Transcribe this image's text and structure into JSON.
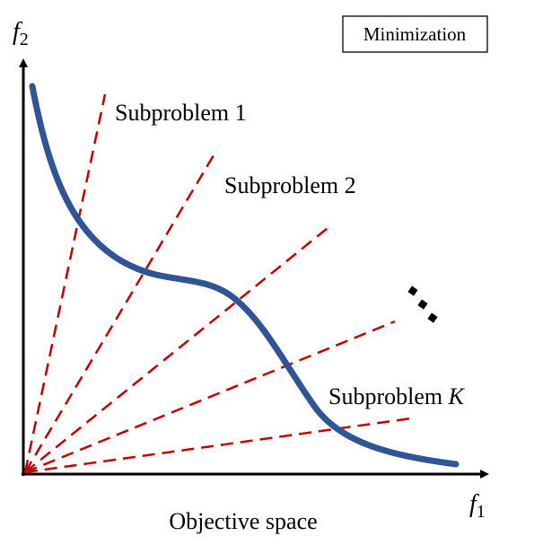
{
  "axes": {
    "y_label_base": "f",
    "y_label_sub": "2",
    "x_label_base": "f",
    "x_label_sub": "1"
  },
  "caption": "Objective space",
  "mode_box": "Minimization",
  "subproblems": {
    "label_1": "Subproblem 1",
    "label_2": "Subproblem 2",
    "label_k_prefix": "Subproblem ",
    "label_k_var": "K"
  },
  "colors": {
    "pareto_front": "#2f5597",
    "rays": "#c00000",
    "axes": "#000000"
  }
}
